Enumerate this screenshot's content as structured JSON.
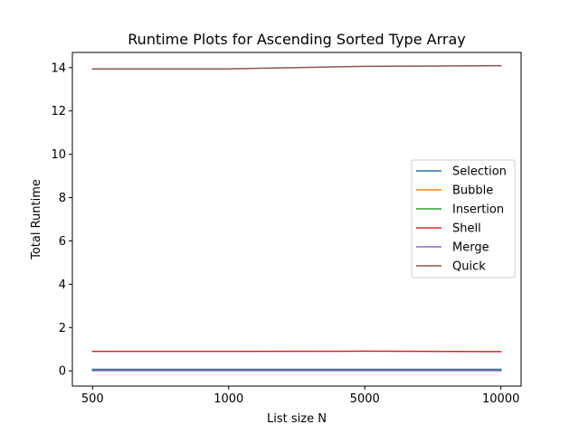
{
  "chart_data": {
    "type": "line",
    "title": "Runtime Plots for Ascending Sorted Type Array",
    "xlabel": "List size N",
    "ylabel": "Total Runtime",
    "categories": [
      "500",
      "1000",
      "5000",
      "10000"
    ],
    "ylim": [
      -0.7,
      14.7
    ],
    "yticks": [
      0,
      2,
      4,
      6,
      8,
      10,
      12,
      14
    ],
    "grid": false,
    "legend_position": "center-right",
    "series": [
      {
        "name": "Selection",
        "color": "#1f77b4",
        "values": [
          0.07,
          0.07,
          0.07,
          0.07
        ]
      },
      {
        "name": "Bubble",
        "color": "#ff7f0e",
        "values": [
          0.02,
          0.02,
          0.02,
          0.02
        ]
      },
      {
        "name": "Insertion",
        "color": "#2ca02c",
        "values": [
          0.03,
          0.03,
          0.03,
          0.03
        ]
      },
      {
        "name": "Shell",
        "color": "#d62728",
        "values": [
          0.9,
          0.9,
          0.91,
          0.89
        ]
      },
      {
        "name": "Merge",
        "color": "#9467bd",
        "values": [
          0.01,
          0.01,
          0.01,
          0.01
        ]
      },
      {
        "name": "Quick",
        "color": "#8c564b",
        "values": [
          13.94,
          13.94,
          14.06,
          14.09
        ]
      }
    ]
  }
}
